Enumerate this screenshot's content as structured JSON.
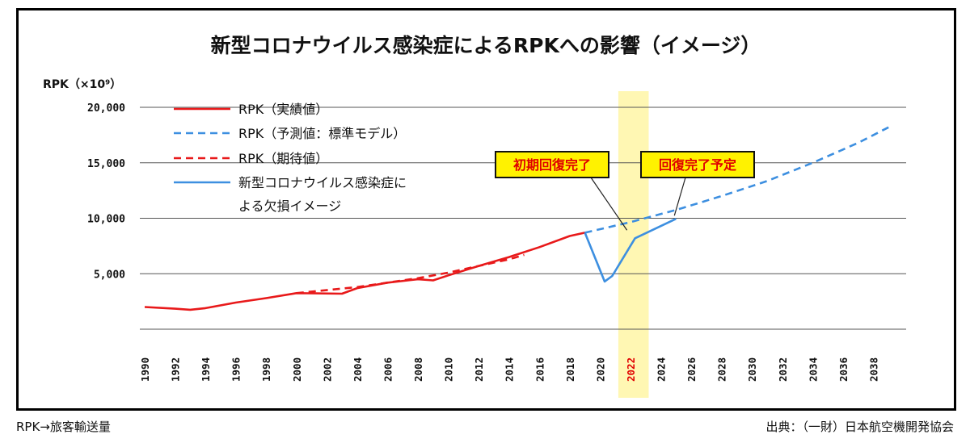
{
  "chart_data": {
    "type": "line",
    "title": "新型コロナウイルス感染症によるRPKへの影響（イメージ）",
    "ylabel": "RPK（×10⁹）",
    "ylim": [
      0,
      20000
    ],
    "yticks": [
      {
        "value": 5000,
        "label": "5,000"
      },
      {
        "value": 10000,
        "label": "10,000"
      },
      {
        "value": 15000,
        "label": "15,000"
      },
      {
        "value": 20000,
        "label": "20,000"
      }
    ],
    "xlim": [
      1990,
      2039
    ],
    "xticks": [
      "1990",
      "1992",
      "1994",
      "1996",
      "1998",
      "2000",
      "2002",
      "2004",
      "2006",
      "2008",
      "2010",
      "2012",
      "2014",
      "2016",
      "2018",
      "2020",
      "2022",
      "2024",
      "2026",
      "2028",
      "2030",
      "2032",
      "2034",
      "2036",
      "2038"
    ],
    "highlight_year": "2022",
    "highlight_range": [
      2021.2,
      2023.2
    ],
    "series": [
      {
        "name": "RPK（実績値）",
        "color": "#e8191a",
        "dash": "solid",
        "points": [
          [
            1990,
            2000
          ],
          [
            1992,
            1850
          ],
          [
            1993,
            1750
          ],
          [
            1994,
            1900
          ],
          [
            1996,
            2400
          ],
          [
            1998,
            2800
          ],
          [
            2000,
            3250
          ],
          [
            2003,
            3200
          ],
          [
            2004,
            3700
          ],
          [
            2006,
            4200
          ],
          [
            2008,
            4500
          ],
          [
            2009,
            4400
          ],
          [
            2010,
            4850
          ],
          [
            2012,
            5700
          ],
          [
            2014,
            6500
          ],
          [
            2016,
            7400
          ],
          [
            2018,
            8400
          ],
          [
            2019,
            8700
          ]
        ]
      },
      {
        "name": "RPK（予測値：標準モデル）",
        "color": "#3d8fe0",
        "dash": "dashed",
        "points": [
          [
            2019,
            8700
          ],
          [
            2022,
            9650
          ],
          [
            2025,
            10750
          ],
          [
            2028,
            12000
          ],
          [
            2031,
            13350
          ],
          [
            2034,
            15000
          ],
          [
            2037,
            16800
          ],
          [
            2039,
            18200
          ]
        ]
      },
      {
        "name": "RPK（期待値）",
        "color": "#e8191a",
        "dash": "dashed",
        "points": [
          [
            2000,
            3250
          ],
          [
            2004,
            3800
          ],
          [
            2008,
            4600
          ],
          [
            2010,
            5100
          ],
          [
            2012,
            5700
          ],
          [
            2014,
            6300
          ],
          [
            2015,
            6700
          ]
        ]
      },
      {
        "name": "新型コロナウイルス感染症による欠損イメージ",
        "color": "#3d8fe0",
        "dash": "solid",
        "points": [
          [
            2019,
            8700
          ],
          [
            2020.3,
            4300
          ],
          [
            2020.8,
            4800
          ],
          [
            2022.3,
            8200
          ],
          [
            2025,
            9950
          ]
        ]
      }
    ],
    "legend": {
      "position": "top-left",
      "line4b": "よる欠損イメージ"
    },
    "annotations": [
      {
        "text": "初期回復完了",
        "target": [
          2022.3,
          8200
        ]
      },
      {
        "text": "回復完了予定",
        "target": [
          2025,
          9950
        ]
      }
    ]
  },
  "footer": {
    "left": "RPK→旅客輸送量",
    "right": "出典：（一財）日本航空機開発協会"
  },
  "colors": {
    "red": "#e8191a",
    "blue": "#3d8fe0",
    "highlight": "#fff7b3",
    "callout_fill": "#fff200"
  }
}
